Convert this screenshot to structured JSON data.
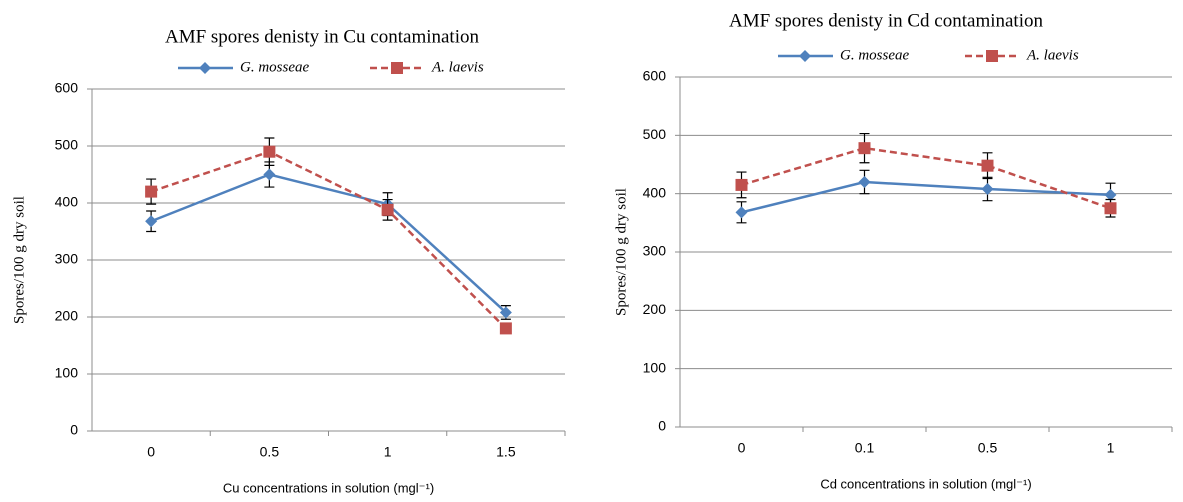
{
  "chart_data": [
    {
      "type": "line",
      "title": "AMF spores denisty in Cu contamination",
      "x_label": "Cu concentrations in solution (mgl⁻¹)",
      "y_label": "Spores/100 g dry soil",
      "categories": [
        "0",
        "0.5",
        "1",
        "1.5"
      ],
      "series": [
        {
          "name": "G. mosseae",
          "color": "#4f81bd",
          "marker": "diamond",
          "dashed": false,
          "values": [
            368,
            450,
            398,
            208
          ],
          "errors": [
            18,
            22,
            20,
            12
          ]
        },
        {
          "name": "A. laevis",
          "color": "#c0504d",
          "marker": "square",
          "dashed": true,
          "values": [
            420,
            490,
            388,
            180
          ],
          "errors": [
            22,
            24,
            18,
            8
          ]
        }
      ],
      "ylim": [
        0,
        600
      ],
      "yticks": [
        0,
        100,
        200,
        300,
        400,
        500,
        600
      ],
      "grid": true
    },
    {
      "type": "line",
      "title": "AMF spores denisty in Cd contamination",
      "x_label": "Cd concentrations in solution (mgl⁻¹)",
      "y_label": "Spores/100 g dry soil",
      "categories": [
        "0",
        "0.1",
        "0.5",
        "1"
      ],
      "series": [
        {
          "name": "G. mosseae",
          "color": "#4f81bd",
          "marker": "diamond",
          "dashed": false,
          "values": [
            368,
            420,
            408,
            398
          ],
          "errors": [
            18,
            20,
            20,
            20
          ]
        },
        {
          "name": "A. laevis",
          "color": "#c0504d",
          "marker": "square",
          "dashed": true,
          "values": [
            415,
            478,
            448,
            375
          ],
          "errors": [
            22,
            25,
            22,
            15
          ]
        }
      ],
      "ylim": [
        0,
        600
      ],
      "yticks": [
        0,
        100,
        200,
        300,
        400,
        500,
        600
      ],
      "grid": true
    }
  ]
}
